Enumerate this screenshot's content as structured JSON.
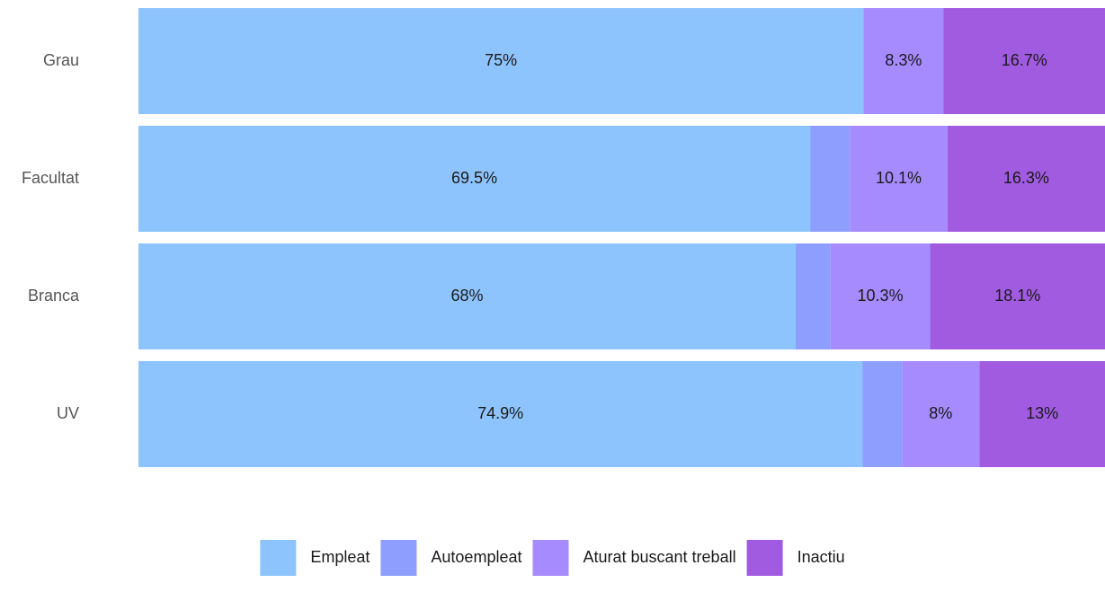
{
  "chart_data": {
    "type": "bar",
    "orientation": "horizontal",
    "stacked": true,
    "normalized_percent": true,
    "categories": [
      "Grau",
      "Facultat",
      "Branca",
      "UV"
    ],
    "series": [
      {
        "name": "Empleat",
        "color": "#8ec4fe",
        "values": [
          75,
          69.5,
          68,
          74.9
        ],
        "labels": [
          "75%",
          "69.5%",
          "68%",
          "74.9%"
        ]
      },
      {
        "name": "Autoempleat",
        "color": "#8d9efe",
        "values": [
          0,
          4.1,
          3.6,
          4.1
        ],
        "labels": [
          "",
          "",
          "",
          ""
        ]
      },
      {
        "name": "Aturat buscant treball",
        "color": "#a58bfe",
        "values": [
          8.3,
          10.1,
          10.3,
          8
        ],
        "labels": [
          "8.3%",
          "10.1%",
          "10.3%",
          "8%"
        ]
      },
      {
        "name": "Inactiu",
        "color": "#a15be0",
        "values": [
          16.7,
          16.3,
          18.1,
          13
        ],
        "labels": [
          "16.7%",
          "16.3%",
          "18.1%",
          "13%"
        ]
      }
    ],
    "xlim": [
      0,
      100
    ],
    "grid": false,
    "legend": "bottom-center"
  }
}
